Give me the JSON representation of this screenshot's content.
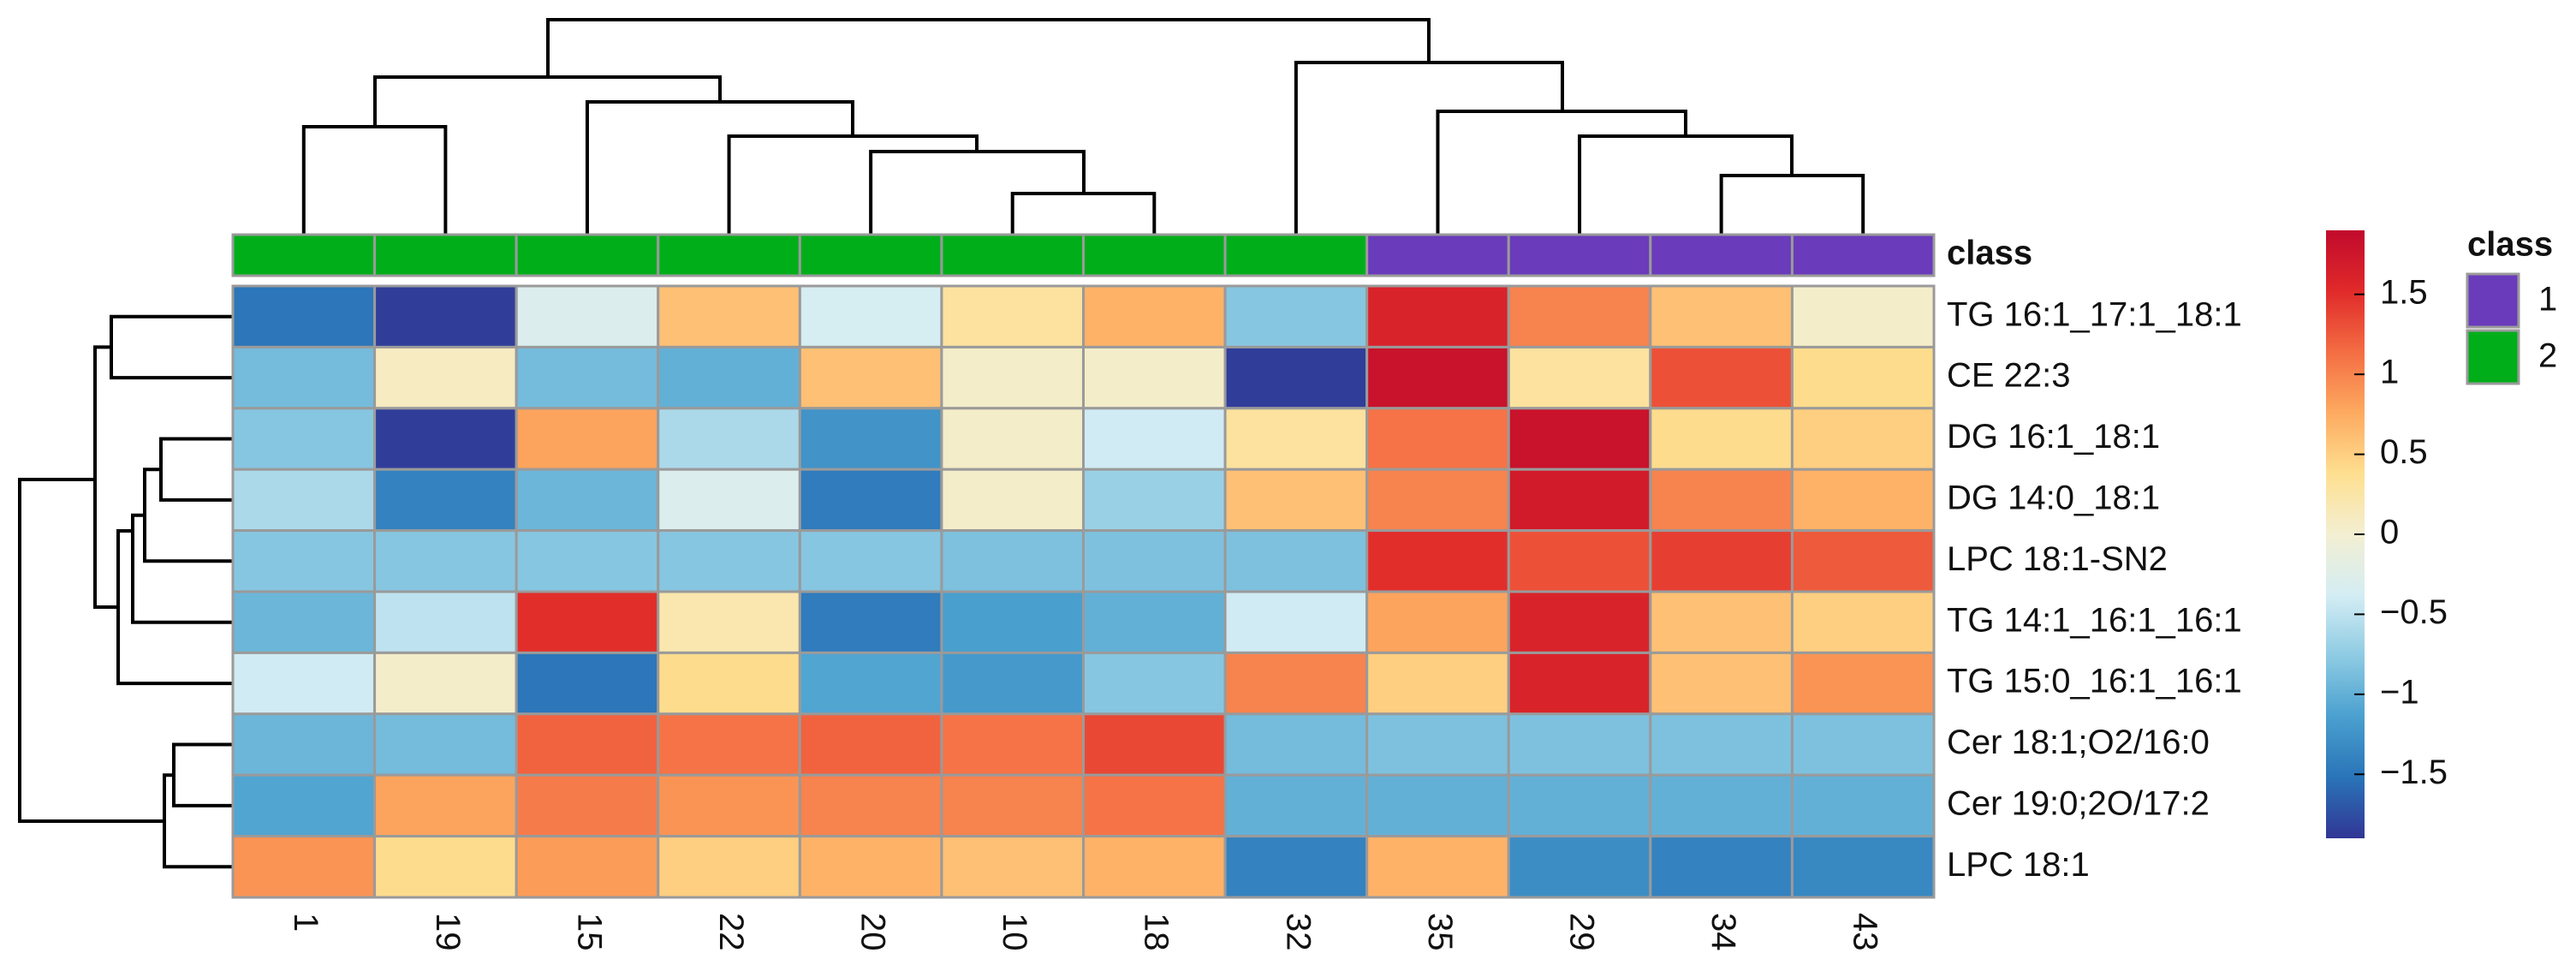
{
  "chart_data": {
    "type": "heatmap",
    "columns": [
      "1",
      "19",
      "15",
      "22",
      "20",
      "10",
      "18",
      "32",
      "35",
      "29",
      "34",
      "43"
    ],
    "rows": [
      "TG 16:1_17:1_18:1",
      "CE 22:3",
      "DG 16:1_18:1",
      "DG 14:0_18:1",
      "LPC 18:1-SN2",
      "TG 14:1_16:1_16:1",
      "TG 15:0_16:1_16:1",
      "Cer 18:1;O2/16:0",
      "Cer 19:0;2O/17:2",
      "LPC 18:1"
    ],
    "values": [
      [
        -1.5,
        -1.85,
        -0.3,
        0.6,
        -0.35,
        0.3,
        0.7,
        -0.8,
        1.6,
        1.0,
        0.6,
        0.05
      ],
      [
        -0.9,
        0.1,
        -0.9,
        -1.0,
        0.6,
        0.05,
        0.05,
        -1.85,
        1.8,
        0.3,
        1.3,
        0.4
      ],
      [
        -0.8,
        -1.85,
        0.8,
        -0.6,
        -1.25,
        0.05,
        -0.4,
        0.3,
        1.1,
        1.8,
        0.4,
        0.5
      ],
      [
        -0.6,
        -1.4,
        -0.95,
        -0.3,
        -1.45,
        0.05,
        -0.7,
        0.6,
        1.0,
        1.7,
        1.0,
        0.7
      ],
      [
        -0.8,
        -0.8,
        -0.8,
        -0.8,
        -0.8,
        -0.85,
        -0.85,
        -0.85,
        1.5,
        1.3,
        1.4,
        1.25
      ],
      [
        -0.95,
        -0.5,
        1.5,
        0.2,
        -1.45,
        -1.15,
        -1.0,
        -0.4,
        0.8,
        1.6,
        0.6,
        0.5
      ],
      [
        -0.4,
        0.05,
        -1.5,
        0.4,
        -1.1,
        -1.2,
        -0.8,
        1.0,
        0.5,
        1.6,
        0.6,
        0.9
      ],
      [
        -0.95,
        -0.9,
        1.2,
        1.1,
        1.2,
        1.1,
        1.35,
        -0.9,
        -0.85,
        -0.85,
        -0.85,
        -0.85
      ],
      [
        -1.1,
        0.8,
        1.05,
        0.9,
        1.0,
        1.0,
        1.1,
        -1.0,
        -1.0,
        -1.0,
        -1.0,
        -1.0
      ],
      [
        0.9,
        0.4,
        0.85,
        0.5,
        0.7,
        0.6,
        0.7,
        -1.4,
        0.7,
        -1.3,
        -1.4,
        -1.35
      ]
    ],
    "colorlim": [
      -1.9,
      1.9
    ],
    "colors": [
      "#313695",
      "#2a74b8",
      "#4aa0cf",
      "#8ecbe3",
      "#d4edf4",
      "#f3efd2",
      "#fedf90",
      "#fdaa60",
      "#f46d43",
      "#e02a2a",
      "#c10a2c"
    ],
    "colorticks": [
      {
        "value": -1.5,
        "label": "−1.5"
      },
      {
        "value": -1,
        "label": "−1"
      },
      {
        "value": -0.5,
        "label": "−0.5"
      },
      0,
      0.5,
      1,
      1.5
    ],
    "annotation": {
      "title": "class",
      "values": [
        "2",
        "2",
        "2",
        "2",
        "2",
        "2",
        "2",
        "2",
        "1",
        "1",
        "1",
        "1"
      ],
      "levels": [
        {
          "name": "1",
          "color": "#6a3bbb"
        },
        {
          "name": "2",
          "color": "#00ae1a"
        }
      ]
    }
  }
}
